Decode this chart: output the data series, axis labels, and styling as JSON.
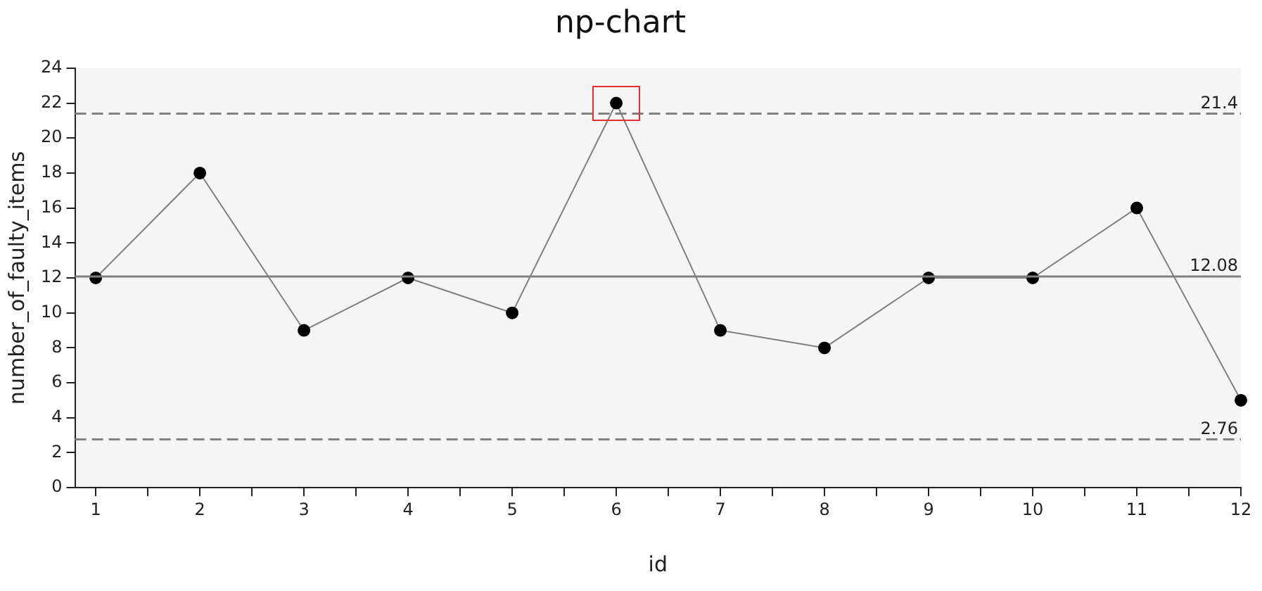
{
  "chart_data": {
    "type": "line",
    "title": "np-chart",
    "xlabel": "id",
    "ylabel": "number_of_faulty_items",
    "x": [
      1,
      2,
      3,
      4,
      5,
      6,
      7,
      8,
      9,
      10,
      11,
      12
    ],
    "series": [
      {
        "color": "#808080",
        "values": [
          12,
          18,
          9,
          12,
          10,
          22,
          9,
          8,
          12,
          12,
          16,
          5
        ]
      }
    ],
    "xlim": [
      0.8,
      12
    ],
    "xticks": [
      1,
      {
        "value": 1.5,
        "label": null
      },
      2,
      {
        "value": 2.5,
        "label": null
      },
      3,
      {
        "value": 3.5,
        "label": null
      },
      4,
      {
        "value": 4.5,
        "label": null
      },
      5,
      {
        "value": 5.5,
        "label": null
      },
      6,
      {
        "value": 6.5,
        "label": null
      },
      7,
      {
        "value": 7.5,
        "label": null
      },
      8,
      {
        "value": 8.5,
        "label": null
      },
      9,
      {
        "value": 9.5,
        "label": null
      },
      10,
      {
        "value": 10.5,
        "label": null
      },
      11,
      {
        "value": 11.5,
        "label": null
      },
      12
    ],
    "ylim": [
      0,
      24
    ],
    "yticks": [
      0,
      2,
      4,
      6,
      8,
      10,
      12,
      14,
      16,
      18,
      20,
      22,
      24
    ],
    "ref_lines": [
      {
        "axis": "y",
        "value": 21.4,
        "label": "21.4",
        "color": "#808080",
        "line_style": "dashed"
      },
      {
        "axis": "y",
        "value": 12.08,
        "label": "12.08",
        "color": "#808080",
        "line_style": "solid"
      },
      {
        "axis": "y",
        "value": 2.76,
        "label": "2.76",
        "color": "#808080",
        "line_style": "dashed"
      }
    ],
    "grid": false,
    "legend": false,
    "marker": "circle",
    "line_style": "solid"
  }
}
